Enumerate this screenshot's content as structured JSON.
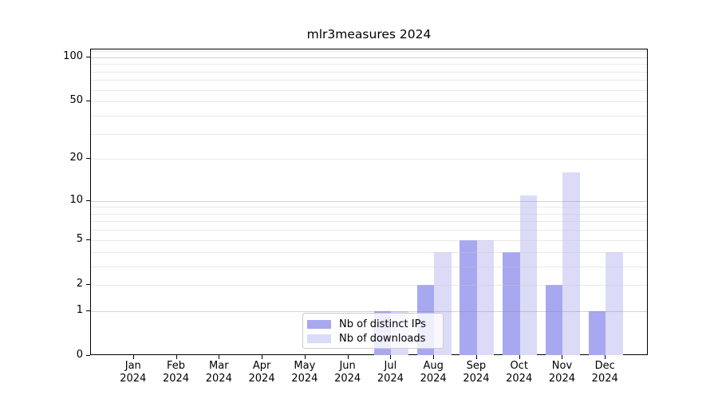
{
  "chart_data": {
    "type": "bar",
    "title": "mlr3measures 2024",
    "categories": [
      "Jan",
      "Feb",
      "Mar",
      "Apr",
      "May",
      "Jun",
      "Jul",
      "Aug",
      "Sep",
      "Oct",
      "Nov",
      "Dec"
    ],
    "category_year": "2024",
    "series": [
      {
        "name": "Nb of distinct IPs",
        "color": "#a8a8f0",
        "values": [
          0,
          0,
          0,
          0,
          0,
          0,
          1,
          2,
          5,
          4,
          2,
          1
        ]
      },
      {
        "name": "Nb of downloads",
        "color": "#dbdbf8",
        "values": [
          0,
          0,
          0,
          0,
          0,
          0,
          1,
          4,
          5,
          11,
          16,
          4
        ]
      }
    ],
    "y_axis": {
      "scale": "log1p",
      "tick_values": [
        0,
        1,
        2,
        5,
        10,
        20,
        50,
        100
      ],
      "tick_labels": [
        "0",
        "1",
        "2",
        "5",
        "10",
        "20",
        "50",
        "100"
      ],
      "major_gridlines": [
        1,
        10,
        100
      ],
      "minor_gridlines": [
        2,
        3,
        4,
        5,
        6,
        7,
        8,
        9,
        20,
        30,
        40,
        50,
        60,
        70,
        80,
        90,
        110
      ],
      "ymax": 113
    },
    "xlabel": "",
    "ylabel": "",
    "grid": "on",
    "legend_position": "bottom-center-inside"
  }
}
